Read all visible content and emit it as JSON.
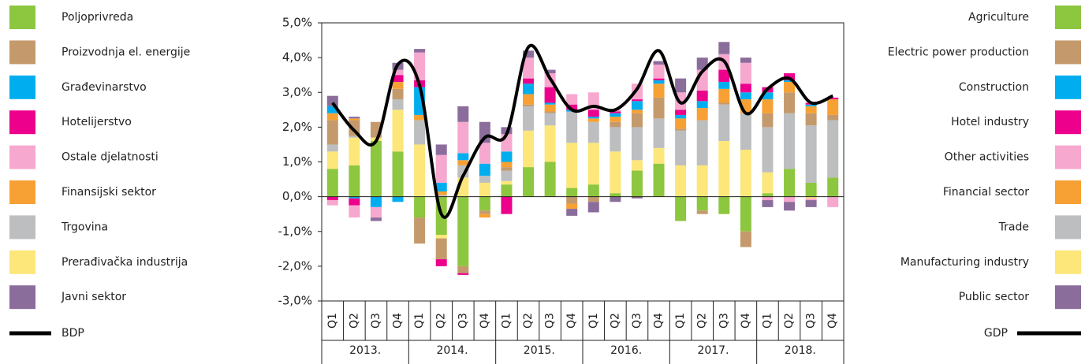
{
  "chart_data": {
    "type": "bar",
    "stacked": true,
    "categories": [
      "Q1",
      "Q2",
      "Q3",
      "Q4",
      "Q1",
      "Q2",
      "Q3",
      "Q4",
      "Q1",
      "Q2",
      "Q3",
      "Q4",
      "Q1",
      "Q2",
      "Q3",
      "Q4",
      "Q1",
      "Q2",
      "Q3",
      "Q4",
      "Q1",
      "Q2",
      "Q3",
      "Q4"
    ],
    "years": [
      "2013.",
      "2014.",
      "2015.",
      "2016.",
      "2017.",
      "2018."
    ],
    "ylim": [
      -3,
      5
    ],
    "yticks": [
      {
        "value": -3,
        "label": "-3,0%"
      },
      {
        "value": -2,
        "label": "-2,0%"
      },
      {
        "value": -1,
        "label": "-1,0%"
      },
      {
        "value": 0,
        "label": "0,0%"
      },
      {
        "value": 1,
        "label": "1,0%"
      },
      {
        "value": 2,
        "label": "2,0%"
      },
      {
        "value": 3,
        "label": "3,0%"
      },
      {
        "value": 4,
        "label": "4,0%"
      },
      {
        "value": 5,
        "label": "5,0%"
      }
    ],
    "series": [
      {
        "name": "Agriculture",
        "name_local": "Poljoprivreda",
        "color": "#8dc63f",
        "values": [
          0.8,
          0.9,
          1.6,
          1.3,
          -0.6,
          -1.1,
          -2.0,
          -0.4,
          0.35,
          0.85,
          1.0,
          0.25,
          0.35,
          0.1,
          0.75,
          0.95,
          -0.7,
          -0.4,
          -0.5,
          -1.0,
          0.1,
          0.8,
          0.4,
          0.55
        ]
      },
      {
        "name": "Electric power production",
        "name_local": "Proizvodnja el. energije",
        "color": "#c49a6c",
        "values": [
          0.7,
          0.45,
          0.45,
          0.3,
          -0.75,
          -0.6,
          -0.2,
          -0.1,
          0.1,
          0.05,
          0.05,
          -0.2,
          -0.15,
          0.15,
          0.4,
          0.6,
          0.05,
          -0.1,
          0.05,
          -0.45,
          0.4,
          0.6,
          0.35,
          0.15
        ]
      },
      {
        "name": "Construction",
        "name_local": "Građevinarstvo",
        "color": "#00aeef",
        "values": [
          0.2,
          -0.05,
          -0.3,
          -0.15,
          0.8,
          0.25,
          0.2,
          0.35,
          0.3,
          0.3,
          0.05,
          0.05,
          0.05,
          0.1,
          0.25,
          0.1,
          0.1,
          0.2,
          0.2,
          0.2,
          0.2,
          0.05,
          0.05,
          0
        ]
      },
      {
        "name": "Hotel industry",
        "name_local": "Hotelijerstvo",
        "color": "#ec008c",
        "values": [
          -0.1,
          -0.2,
          0,
          0.2,
          0.2,
          -0.2,
          -0.05,
          0,
          -0.5,
          0.15,
          0.45,
          0.15,
          0.2,
          0.05,
          0.05,
          0.05,
          0.15,
          0.3,
          0.35,
          0.25,
          0.15,
          0.2,
          0.05,
          0.05
        ]
      },
      {
        "name": "Other activities",
        "name_local": "Ostale djelatnosti",
        "color": "#f6a8cf",
        "values": [
          -0.15,
          -0.35,
          -0.3,
          0.15,
          0.8,
          0.8,
          0.9,
          0.6,
          0.5,
          0.6,
          0.4,
          0.3,
          0.5,
          0.05,
          0.45,
          0.4,
          0.5,
          0.6,
          0.45,
          0.6,
          -0.1,
          -0.15,
          -0.05,
          -0.3
        ]
      },
      {
        "name": "Financial sector",
        "name_local": "Finansijski sektor",
        "color": "#f7a134",
        "values": [
          0.2,
          0.05,
          0,
          0.2,
          0.15,
          0.1,
          0.15,
          -0.1,
          0.15,
          0.3,
          0.2,
          -0.15,
          0.1,
          0.15,
          0.1,
          0.4,
          0.3,
          0.35,
          0.4,
          0.4,
          0.4,
          0.3,
          0.2,
          0.45
        ]
      },
      {
        "name": "Trade",
        "name_local": "Trgovina",
        "color": "#bcbec0",
        "values": [
          0.2,
          0.05,
          0,
          0.3,
          0.7,
          0.05,
          0.35,
          0.2,
          0.3,
          0.7,
          0.35,
          0.9,
          0.6,
          0.7,
          0.95,
          0.85,
          1.0,
          1.3,
          1.05,
          1.05,
          1.3,
          1.6,
          1.65,
          1.65
        ]
      },
      {
        "name": "Manufacturing industry",
        "name_local": "Prerađivačka industrija",
        "color": "#fde67a",
        "values": [
          0.5,
          0.8,
          0.1,
          1.2,
          1.5,
          -0.1,
          0.55,
          0.4,
          0.1,
          1.05,
          1.05,
          1.3,
          1.2,
          1.2,
          0.3,
          0.45,
          0.9,
          0.9,
          1.6,
          1.35,
          0.6,
          0,
          -0.05,
          0
        ]
      },
      {
        "name": "Public sector",
        "name_local": "Javni sektor",
        "color": "#8b6d9c",
        "values": [
          0.3,
          0.05,
          -0.1,
          0.2,
          0.1,
          0.3,
          0.45,
          0.6,
          0.2,
          0.2,
          0.1,
          -0.2,
          -0.3,
          -0.15,
          -0.05,
          0.1,
          0.4,
          0.35,
          0.35,
          0.15,
          -0.2,
          -0.25,
          -0.2,
          0
        ]
      }
    ],
    "line": {
      "name": "GDP",
      "name_local": "BDP",
      "color": "#000000",
      "values": [
        2.7,
        1.9,
        1.6,
        3.8,
        3.2,
        -0.5,
        0.6,
        1.7,
        1.8,
        4.3,
        3.4,
        2.5,
        2.6,
        2.5,
        3.1,
        4.2,
        2.7,
        3.6,
        3.9,
        2.4,
        3.1,
        3.4,
        2.7,
        2.9
      ]
    }
  }
}
